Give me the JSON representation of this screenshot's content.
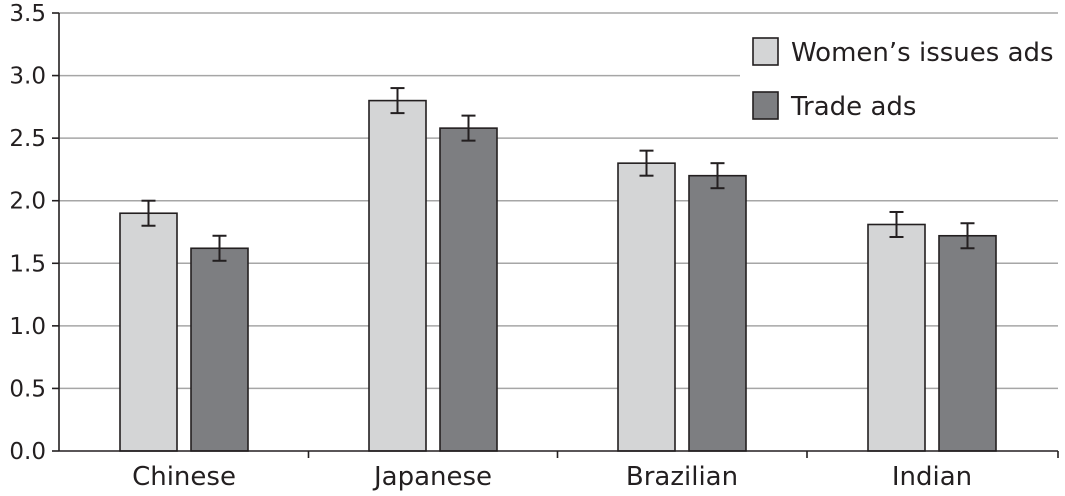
{
  "chart_data": {
    "type": "bar",
    "categories": [
      "Chinese",
      "Japanese",
      "Brazilian",
      "Indian"
    ],
    "series": [
      {
        "name": "Women’s issues ads",
        "values": [
          1.9,
          2.8,
          2.3,
          1.81
        ],
        "error": [
          0.1,
          0.1,
          0.1,
          0.1
        ],
        "color": "#d4d5d6"
      },
      {
        "name": "Trade ads",
        "values": [
          1.62,
          2.58,
          2.2,
          1.72
        ],
        "error": [
          0.1,
          0.1,
          0.1,
          0.1
        ],
        "color": "#7d7e81"
      }
    ],
    "title": "",
    "xlabel": "",
    "ylabel": "",
    "ylim": [
      0,
      3.5
    ],
    "yticks": [
      "0.0",
      "0.5",
      "1.0",
      "1.5",
      "2.0",
      "2.5",
      "3.0",
      "3.5"
    ],
    "grid": "horizontal",
    "legend": "top-right"
  }
}
